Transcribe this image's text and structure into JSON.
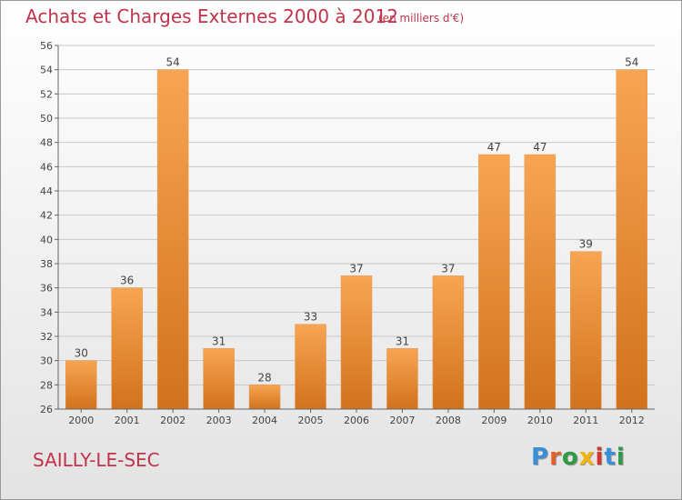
{
  "header": {
    "title": "Achats et Charges Externes 2000 à 2012",
    "subtitle": "(en milliers d'€)"
  },
  "footer": {
    "location": "SAILLY-LE-SEC",
    "brand": "Proxiti",
    "brand_colors": [
      "#3b8fd6",
      "#e2612b",
      "#2f9a46",
      "#f2b400",
      "#d1342f",
      "#3b8fd6",
      "#2f9a46"
    ]
  },
  "colors": {
    "title": "#c0334a",
    "bar_light": "#f7a552",
    "bar_dark": "#d2721c",
    "grid": "#c8c8c8"
  },
  "chart_data": {
    "type": "bar",
    "title": "Achats et Charges Externes 2000 à 2012",
    "subtitle": "(en milliers d'€)",
    "categories": [
      "2000",
      "2001",
      "2002",
      "2003",
      "2004",
      "2005",
      "2006",
      "2007",
      "2008",
      "2009",
      "2010",
      "2011",
      "2012"
    ],
    "values": [
      30,
      36,
      54,
      31,
      28,
      33,
      37,
      31,
      37,
      47,
      47,
      39,
      54
    ],
    "ylim": [
      26,
      56
    ],
    "yticks": [
      26,
      28,
      30,
      32,
      34,
      36,
      38,
      40,
      42,
      44,
      46,
      48,
      50,
      52,
      54,
      56
    ],
    "grid": true,
    "data_labels": true
  }
}
